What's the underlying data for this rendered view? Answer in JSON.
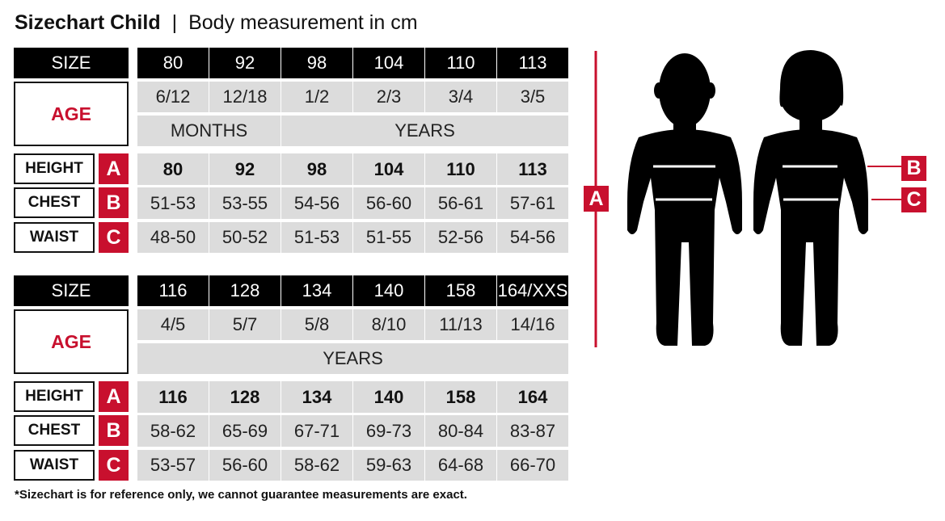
{
  "title": {
    "main": "Sizechart Child",
    "separator": "|",
    "subtitle": "Body measurement in cm"
  },
  "labels": {
    "size": "SIZE",
    "age": "AGE",
    "height": "HEIGHT",
    "chest": "CHEST",
    "waist": "WAIST",
    "a": "A",
    "b": "B",
    "c": "C"
  },
  "tables": [
    {
      "sizes": [
        "80",
        "92",
        "98",
        "104",
        "110",
        "113"
      ],
      "ages": [
        "6/12",
        "12/18",
        "1/2",
        "2/3",
        "3/4",
        "3/5"
      ],
      "age_units": [
        {
          "label": "MONTHS",
          "span": 2
        },
        {
          "label": "YEARS",
          "span": 4
        }
      ],
      "height": [
        "80",
        "92",
        "98",
        "104",
        "110",
        "113"
      ],
      "chest": [
        "51-53",
        "53-55",
        "54-56",
        "56-60",
        "56-61",
        "57-61"
      ],
      "waist": [
        "48-50",
        "50-52",
        "51-53",
        "51-55",
        "52-56",
        "54-56"
      ]
    },
    {
      "sizes": [
        "116",
        "128",
        "134",
        "140",
        "158",
        "164/XXS"
      ],
      "ages": [
        "4/5",
        "5/7",
        "5/8",
        "8/10",
        "11/13",
        "14/16"
      ],
      "age_units": [
        {
          "label": "YEARS",
          "span": 6
        }
      ],
      "height": [
        "116",
        "128",
        "134",
        "140",
        "158",
        "164"
      ],
      "chest": [
        "58-62",
        "65-69",
        "67-71",
        "69-73",
        "80-84",
        "83-87"
      ],
      "waist": [
        "53-57",
        "56-60",
        "58-62",
        "59-63",
        "64-68",
        "66-70"
      ]
    }
  ],
  "footnote": "*Sizechart is for reference only, we cannot guarantee measurements are exact.",
  "colors": {
    "accent": "#c8102e",
    "header": "#000000",
    "cell": "#dcdcdc"
  },
  "figure": {
    "icons": [
      "boy-silhouette",
      "girl-silhouette"
    ]
  }
}
